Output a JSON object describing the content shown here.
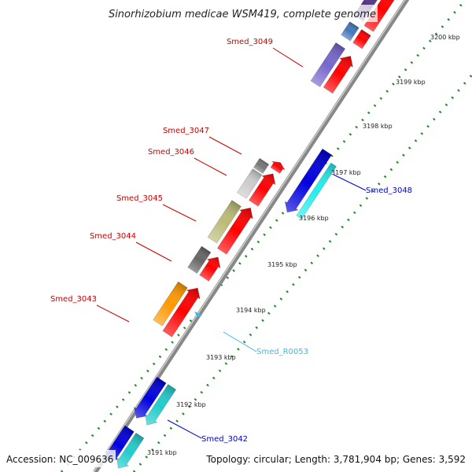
{
  "title": "Sinorhizobium medicae WSM419, complete genome",
  "footer": {
    "accession": "Accession: NC_009636",
    "summary": "Topology: circular; Length: 3,781,904 bp; Genes: 3,592"
  },
  "ticks": [
    {
      "label": "3191 kbp"
    },
    {
      "label": "3192 kbp"
    },
    {
      "label": "3193 kbp"
    },
    {
      "label": "3194 kbp"
    },
    {
      "label": "3195 kbp"
    },
    {
      "label": "3196 kbp"
    },
    {
      "label": "3197 kbp"
    },
    {
      "label": "3198 kbp"
    },
    {
      "label": "3199 kbp"
    },
    {
      "label": "3200 kbp"
    }
  ],
  "gene_labels": [
    {
      "id": "Smed_3049",
      "strand": "forward",
      "color": "#cc0000"
    },
    {
      "id": "Smed_3047",
      "strand": "forward",
      "color": "#cc0000"
    },
    {
      "id": "Smed_3046",
      "strand": "forward",
      "color": "#cc0000"
    },
    {
      "id": "Smed_3045",
      "strand": "forward",
      "color": "#cc0000"
    },
    {
      "id": "Smed_3044",
      "strand": "forward",
      "color": "#cc0000"
    },
    {
      "id": "Smed_3043",
      "strand": "forward",
      "color": "#cc0000"
    },
    {
      "id": "Smed_3048",
      "strand": "reverse",
      "color": "#0000cc"
    },
    {
      "id": "Smed_R0053",
      "strand": "reverse",
      "color": "#33bbee"
    },
    {
      "id": "Smed_3042",
      "strand": "reverse",
      "color": "#0000cc"
    }
  ],
  "colors": {
    "backbone": "#888888",
    "tick_dots": "#228822",
    "cds_forward": "#ff0000",
    "cds_reverse": "#0000dd",
    "cds_cyan": "#22cccc"
  }
}
